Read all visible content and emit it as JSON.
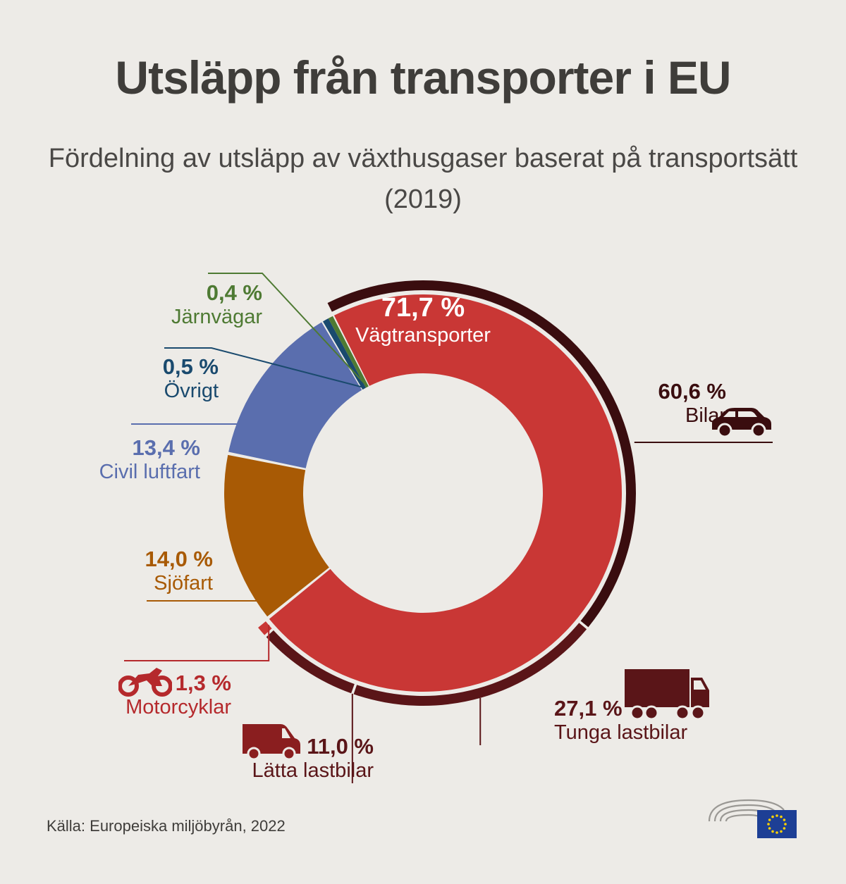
{
  "title": "Utsläpp från transporter i EU",
  "subtitle_line1": "Fördelning av utsläpp av växthusgaser baserat på transportsätt",
  "subtitle_line2": "(2019)",
  "source": "Källa: Europeiska miljöbyrån, 2022",
  "colors": {
    "road": "#c93735",
    "road_dark": "#3a0d0f",
    "road_sub": "#5a1518",
    "aviation": "#5a6eae",
    "maritime": "#a85a05",
    "rail": "#4e7a33",
    "other": "#1a4a6e",
    "motorcycle": "#b5292c"
  },
  "chart_data": {
    "type": "donut",
    "unit": "%",
    "series": [
      {
        "label": "Vägtransporter",
        "value": 71.7,
        "value_text": "71,7 %"
      },
      {
        "label": "Sjöfart",
        "value": 14.0,
        "value_text": "14,0 %"
      },
      {
        "label": "Civil luftfart",
        "value": 13.4,
        "value_text": "13,4 %"
      },
      {
        "label": "Övrigt",
        "value": 0.5,
        "value_text": "0,5 %"
      },
      {
        "label": "Järnvägar",
        "value": 0.4,
        "value_text": "0,4 %"
      }
    ],
    "road_breakdown": [
      {
        "label": "Bilar",
        "value": 60.6,
        "value_text": "60,6 %",
        "icon": "car-icon"
      },
      {
        "label": "Tunga lastbilar",
        "value": 27.1,
        "value_text": "27,1 %",
        "icon": "truck-icon"
      },
      {
        "label": "Lätta lastbilar",
        "value": 11.0,
        "value_text": "11,0 %",
        "icon": "van-icon"
      },
      {
        "label": "Motorcyklar",
        "value": 1.3,
        "value_text": "1,3 %",
        "icon": "motorcycle-icon"
      }
    ]
  }
}
